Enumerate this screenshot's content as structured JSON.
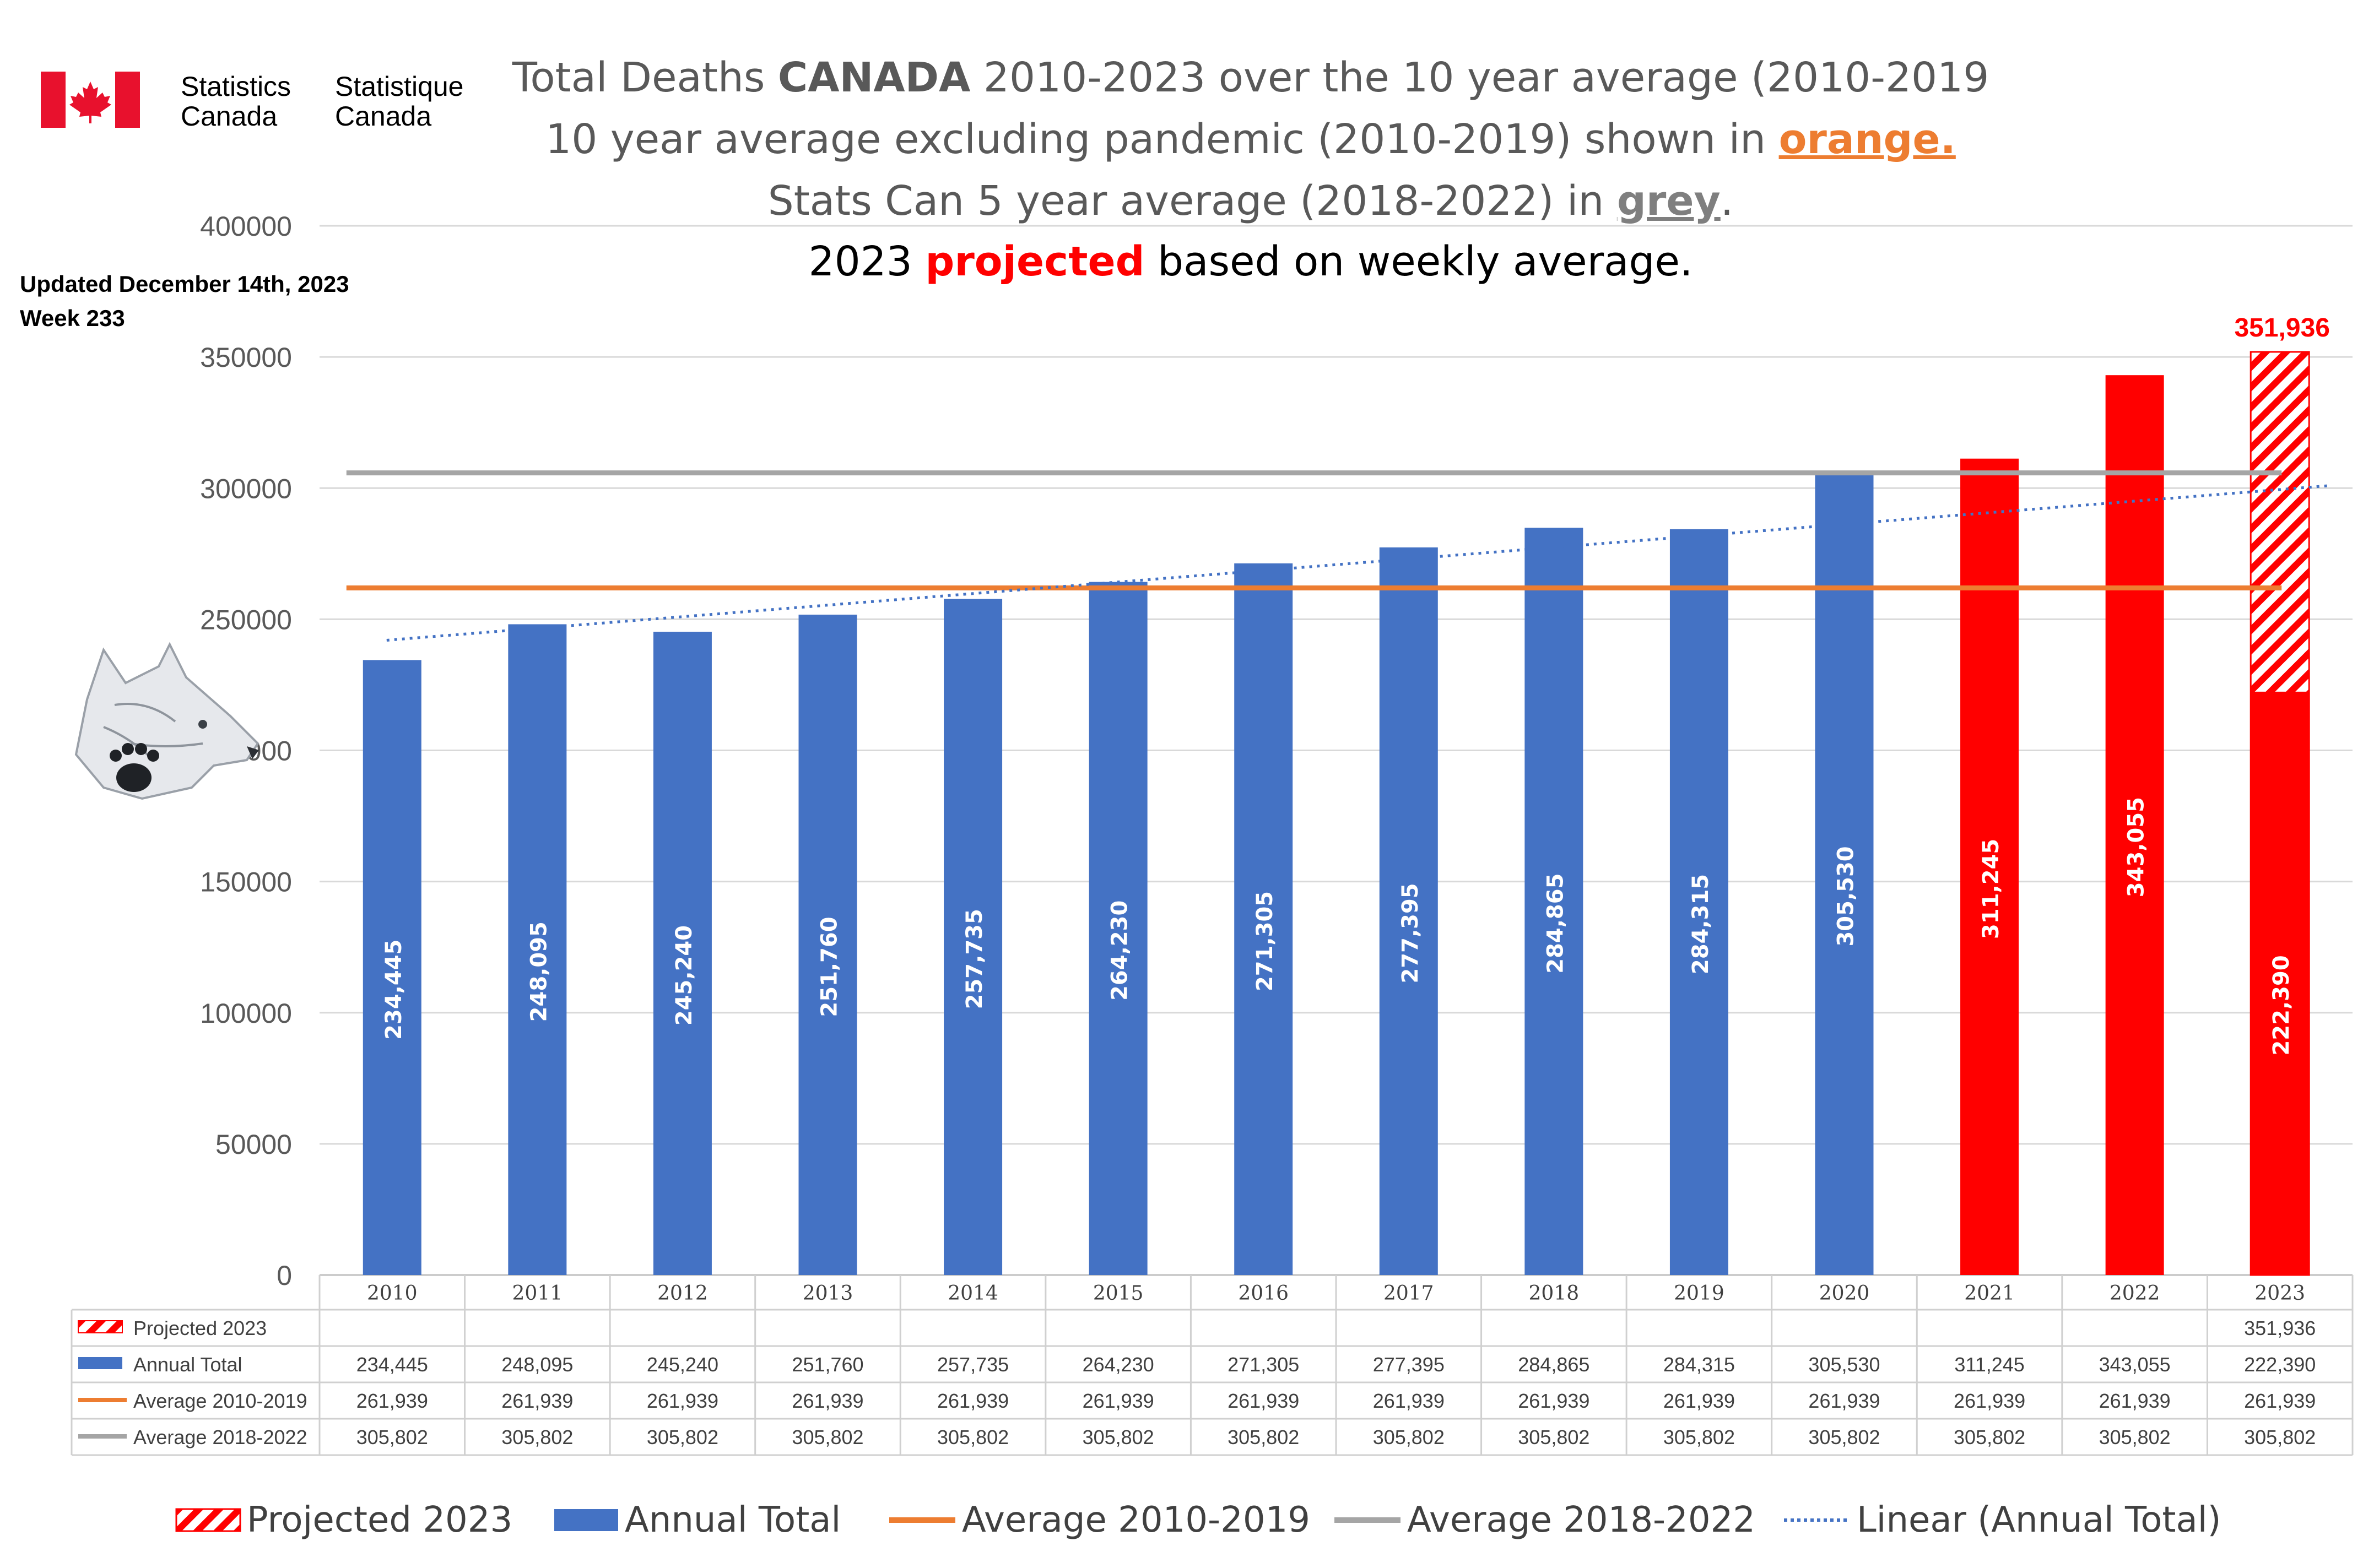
{
  "header": {
    "title_line1_pre": "Total Deaths ",
    "title_line1_bold": "CANADA",
    "title_line1_post": " 2010-2023 over the 10 year average (2010-2019",
    "title_line2_pre": "10 year average excluding pandemic (2010-2019) shown in ",
    "title_line2_orange": "orange.",
    "title_line3_pre": "Stats Can 5 year average (2018-2022) in ",
    "title_line3_grey": "grey",
    "title_line3_post": ".",
    "title_line4_pre": "2023 ",
    "title_line4_red": "projected",
    "title_line4_post": " based on weekly average.",
    "statcan_en_line1": "Statistics",
    "statcan_en_line2": "Canada",
    "statcan_fr_line1": "Statistique",
    "statcan_fr_line2": "Canada",
    "updated_line1": "Updated December 14th, 2023",
    "updated_line2": "Week 233"
  },
  "colors": {
    "annual_total": "#4472C4",
    "pandemic_years": "#FF0000",
    "average_2010_2019": "#ED7D31",
    "average_2018_2022": "#A5A5A5",
    "trendline": "#4472C4",
    "flag_red": "#E8112D"
  },
  "chart_data": {
    "type": "bar",
    "title": "Total Deaths CANADA 2010-2023 over the 10 year average (2010-2019",
    "categories": [
      "2010",
      "2011",
      "2012",
      "2013",
      "2014",
      "2015",
      "2016",
      "2017",
      "2018",
      "2019",
      "2020",
      "2021",
      "2022",
      "2023"
    ],
    "ylim": [
      0,
      400000
    ],
    "yticks": [
      "0",
      "50000",
      "100000",
      "150000",
      "200000",
      "250000",
      "300000",
      "350000",
      "400000"
    ],
    "gridlines": true,
    "legend_position": "bottom",
    "series": [
      {
        "name": "Projected 2023",
        "kind": "bar-hatched",
        "values": [
          null,
          null,
          null,
          null,
          null,
          null,
          null,
          null,
          null,
          null,
          null,
          null,
          null,
          351936
        ],
        "table_values": [
          "",
          "",
          "",
          "",
          "",
          "",
          "",
          "",
          "",
          "",
          "",
          "",
          "",
          "351,936"
        ],
        "top_label": "351,936"
      },
      {
        "name": "Annual Total",
        "kind": "bar",
        "values": [
          234445,
          248095,
          245240,
          251760,
          257735,
          264230,
          271305,
          277395,
          284865,
          284315,
          305530,
          311245,
          343055,
          222390
        ],
        "table_values": [
          "234,445",
          "248,095",
          "245,240",
          "251,760",
          "257,735",
          "264,230",
          "271,305",
          "277,395",
          "284,865",
          "284,315",
          "305,530",
          "311,245",
          "343,055",
          "222,390"
        ]
      },
      {
        "name": "Average 2010-2019",
        "kind": "line",
        "values": [
          261939,
          261939,
          261939,
          261939,
          261939,
          261939,
          261939,
          261939,
          261939,
          261939,
          261939,
          261939,
          261939,
          261939
        ],
        "table_values": [
          "261,939",
          "261,939",
          "261,939",
          "261,939",
          "261,939",
          "261,939",
          "261,939",
          "261,939",
          "261,939",
          "261,939",
          "261,939",
          "261,939",
          "261,939",
          "261,939"
        ]
      },
      {
        "name": "Average 2018-2022",
        "kind": "line",
        "values": [
          305802,
          305802,
          305802,
          305802,
          305802,
          305802,
          305802,
          305802,
          305802,
          305802,
          305802,
          305802,
          305802,
          305802
        ],
        "table_values": [
          "305,802",
          "305,802",
          "305,802",
          "305,802",
          "305,802",
          "305,802",
          "305,802",
          "305,802",
          "305,802",
          "305,802",
          "305,802",
          "305,802",
          "305,802",
          "305,802"
        ]
      }
    ],
    "trendline": {
      "name": "Linear (Annual Total)",
      "start": 242000,
      "end": 301000
    },
    "red_years": [
      "2021",
      "2022",
      "2023"
    ]
  }
}
